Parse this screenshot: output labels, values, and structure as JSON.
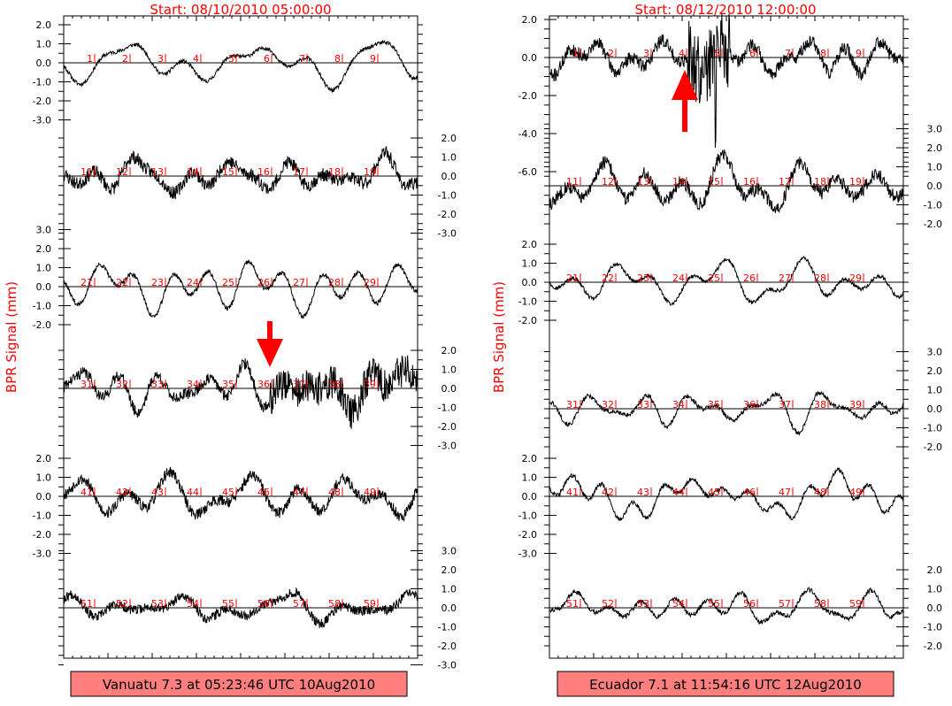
{
  "chart_data": [
    {
      "type": "line",
      "title": "Start: 08/10/2010 05:00:00",
      "ylabel": "BPR Signal (mm)",
      "caption": "Vanuatu 7.3 at 05:23:46 UTC 10Aug2010",
      "arrow": {
        "row": 3,
        "station_index": 5,
        "direction": "down"
      },
      "rows": [
        {
          "label_side": "left",
          "ylim": [
            -3.0,
            2.0
          ],
          "ticks": [
            "2.0",
            "1.0",
            "0.0",
            "-1.0",
            "-2.0",
            "-3.0"
          ],
          "ticks_v": [
            2,
            1,
            0,
            -1,
            -2,
            -3
          ],
          "stations": [
            "1",
            "2",
            "3",
            "4",
            "5",
            "6",
            "7",
            "8",
            "9"
          ],
          "seed": 11,
          "amp": 1.2,
          "noise": 0.1
        },
        {
          "label_side": "right",
          "ylim": [
            -3.0,
            2.0
          ],
          "ticks": [
            "2.0",
            "1.0",
            "0.0",
            "-1.0",
            "-2.0",
            "-3.0"
          ],
          "ticks_v": [
            2,
            1,
            0,
            -1,
            -2,
            -3
          ],
          "stations": [
            "11",
            "12",
            "13",
            "14",
            "15",
            "16",
            "17",
            "18",
            "19"
          ],
          "seed": 23,
          "amp": 1.1,
          "noise": 0.35
        },
        {
          "label_side": "left",
          "ylim": [
            -2.0,
            3.0
          ],
          "ticks": [
            "3.0",
            "2.0",
            "1.0",
            "0.0",
            "-1.0",
            "-2.0"
          ],
          "ticks_v": [
            3,
            2,
            1,
            0,
            -1,
            -2
          ],
          "stations": [
            "21",
            "22",
            "23",
            "24",
            "25",
            "26",
            "27",
            "28",
            "29"
          ],
          "seed": 37,
          "amp": 1.3,
          "noise": 0.12
        },
        {
          "label_side": "right",
          "ylim": [
            -3.0,
            2.0
          ],
          "ticks": [
            "2.0",
            "1.0",
            "0.0",
            "-1.0",
            "-2.0",
            "-3.0"
          ],
          "ticks_v": [
            2,
            1,
            0,
            -1,
            -2,
            -3
          ],
          "stations": [
            "31",
            "32",
            "33",
            "34",
            "35",
            "36",
            "37",
            "38",
            "39"
          ],
          "seed": 41,
          "amp": 1.1,
          "noise": 0.3,
          "noisy_after": 0.58
        },
        {
          "label_side": "left",
          "ylim": [
            -3.0,
            2.0
          ],
          "ticks": [
            "2.0",
            "1.0",
            "0.0",
            "-1.0",
            "-2.0",
            "-3.0"
          ],
          "ticks_v": [
            2,
            1,
            0,
            -1,
            -2,
            -3
          ],
          "stations": [
            "41",
            "42",
            "43",
            "44",
            "45",
            "46",
            "47",
            "48",
            "49"
          ],
          "seed": 53,
          "amp": 1.2,
          "noise": 0.3
        },
        {
          "label_side": "right",
          "ylim": [
            -3.0,
            3.0
          ],
          "ticks": [
            "3.0",
            "2.0",
            "1.0",
            "0.0",
            "-1.0",
            "-2.0",
            "-3.0"
          ],
          "ticks_v": [
            3,
            2,
            1,
            0,
            -1,
            -2,
            -3
          ],
          "stations": [
            "51",
            "52",
            "53",
            "54",
            "55",
            "56",
            "57",
            "58",
            "59"
          ],
          "seed": 67,
          "amp": 1.0,
          "noise": 0.25
        }
      ]
    },
    {
      "type": "line",
      "title": "Start: 08/12/2010 12:00:00",
      "ylabel": "BPR Signal (mm)",
      "caption": "Ecuador 7.1 at 11:54:16 UTC 12Aug2010",
      "arrow": {
        "row": 0,
        "station_index": 3,
        "direction": "up"
      },
      "rows": [
        {
          "label_side": "left",
          "ylim": [
            -6.0,
            2.0
          ],
          "ticks": [
            "2.0",
            "0.0",
            "-2.0",
            "-4.0",
            "-6.0"
          ],
          "ticks_v": [
            2,
            0,
            -2,
            -4,
            -6
          ],
          "stations": [
            "1",
            "2",
            "3",
            "4",
            "5",
            "6",
            "7",
            "8",
            "9"
          ],
          "seed": 71,
          "amp": 0.9,
          "noise": 0.35,
          "spike_at": 0.45
        },
        {
          "label_side": "right",
          "ylim": [
            -2.0,
            3.0
          ],
          "ticks": [
            "3.0",
            "2.0",
            "1.0",
            "0.0",
            "-1.0",
            "-2.0"
          ],
          "ticks_v": [
            3,
            2,
            1,
            0,
            -1,
            -2
          ],
          "stations": [
            "11",
            "12",
            "13",
            "14",
            "15",
            "16",
            "17",
            "18",
            "19"
          ],
          "seed": 83,
          "amp": 1.2,
          "noise": 0.35
        },
        {
          "label_side": "left",
          "ylim": [
            -2.0,
            2.0
          ],
          "ticks": [
            "2.0",
            "1.0",
            "0.0",
            "-1.0",
            "-2.0"
          ],
          "ticks_v": [
            2,
            1,
            0,
            -1,
            -2
          ],
          "stations": [
            "21",
            "22",
            "23",
            "24",
            "25",
            "26",
            "27",
            "28",
            "29"
          ],
          "seed": 97,
          "amp": 1.2,
          "noise": 0.1
        },
        {
          "label_side": "right",
          "ylim": [
            -2.0,
            3.0
          ],
          "ticks": [
            "3.0",
            "2.0",
            "1.0",
            "0.0",
            "-1.0",
            "-2.0"
          ],
          "ticks_v": [
            3,
            2,
            1,
            0,
            -1,
            -2
          ],
          "stations": [
            "31",
            "32",
            "33",
            "34",
            "35",
            "36",
            "37",
            "38",
            "39"
          ],
          "seed": 101,
          "amp": 1.0,
          "noise": 0.12
        },
        {
          "label_side": "left",
          "ylim": [
            -3.0,
            2.0
          ],
          "ticks": [
            "2.0",
            "1.0",
            "0.0",
            "-1.0",
            "-2.0",
            "-3.0"
          ],
          "ticks_v": [
            2,
            1,
            0,
            -1,
            -2,
            -3
          ],
          "stations": [
            "41",
            "42",
            "43",
            "44",
            "45",
            "46",
            "47",
            "48",
            "49"
          ],
          "seed": 113,
          "amp": 1.0,
          "noise": 0.12
        },
        {
          "label_side": "right",
          "ylim": [
            -2.0,
            2.0
          ],
          "ticks": [
            "2.0",
            "1.0",
            "0.0",
            "-1.0",
            "-2.0"
          ],
          "ticks_v": [
            2,
            1,
            0,
            -1,
            -2
          ],
          "stations": [
            "51",
            "52",
            "53",
            "54",
            "55",
            "56",
            "57",
            "58",
            "59"
          ],
          "seed": 127,
          "amp": 1.0,
          "noise": 0.12
        }
      ]
    }
  ],
  "colors": {
    "accent": "#ff0000",
    "trace": "#000000",
    "caption_bg": "#ff7f7f"
  }
}
